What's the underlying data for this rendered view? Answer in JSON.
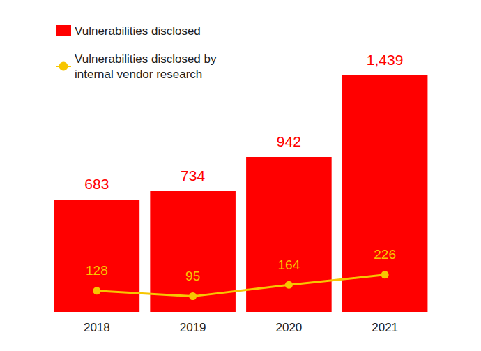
{
  "chart_data": {
    "type": "bar",
    "categories": [
      "2018",
      "2019",
      "2020",
      "2021"
    ],
    "series": [
      {
        "name": "Vulnerabilities disclosed",
        "type": "bar",
        "color": "#ff0000",
        "values": [
          683,
          734,
          942,
          1439
        ],
        "value_labels": [
          "683",
          "734",
          "942",
          "1,439"
        ]
      },
      {
        "name": "Vulnerabilities disclosed by internal vendor research",
        "type": "line",
        "color": "#f7c600",
        "marker": "circle",
        "values": [
          128,
          95,
          164,
          226
        ]
      }
    ],
    "ylim": [
      0,
      1600
    ],
    "grid": false,
    "legend": "upper left",
    "data_labels": true,
    "tick_labels": "x"
  }
}
